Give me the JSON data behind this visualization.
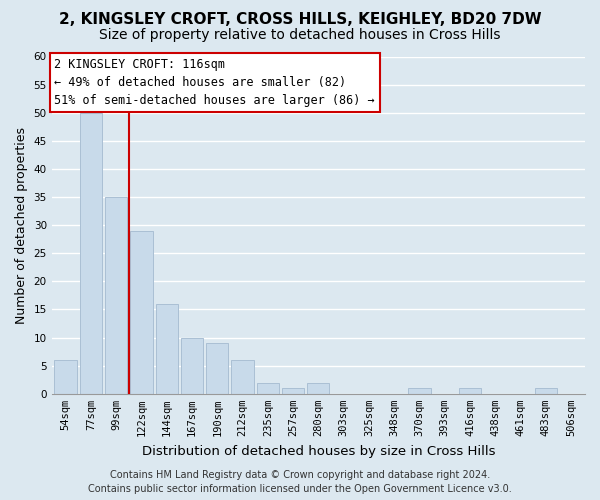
{
  "title": "2, KINGSLEY CROFT, CROSS HILLS, KEIGHLEY, BD20 7DW",
  "subtitle": "Size of property relative to detached houses in Cross Hills",
  "xlabel": "Distribution of detached houses by size in Cross Hills",
  "ylabel": "Number of detached properties",
  "bar_labels": [
    "54sqm",
    "77sqm",
    "99sqm",
    "122sqm",
    "144sqm",
    "167sqm",
    "190sqm",
    "212sqm",
    "235sqm",
    "257sqm",
    "280sqm",
    "303sqm",
    "325sqm",
    "348sqm",
    "370sqm",
    "393sqm",
    "416sqm",
    "438sqm",
    "461sqm",
    "483sqm",
    "506sqm"
  ],
  "bar_values": [
    6,
    50,
    35,
    29,
    16,
    10,
    9,
    6,
    2,
    1,
    2,
    0,
    0,
    0,
    1,
    0,
    1,
    0,
    0,
    1,
    0
  ],
  "bar_color": "#c8daea",
  "bar_edge_color": "#aabfd4",
  "vline_x": 2.5,
  "vline_color": "#cc0000",
  "ylim": [
    0,
    60
  ],
  "yticks": [
    0,
    5,
    10,
    15,
    20,
    25,
    30,
    35,
    40,
    45,
    50,
    55,
    60
  ],
  "annotation_title": "2 KINGSLEY CROFT: 116sqm",
  "annotation_line1": "← 49% of detached houses are smaller (82)",
  "annotation_line2": "51% of semi-detached houses are larger (86) →",
  "footer_line1": "Contains HM Land Registry data © Crown copyright and database right 2024.",
  "footer_line2": "Contains public sector information licensed under the Open Government Licence v3.0.",
  "title_fontsize": 11,
  "subtitle_fontsize": 10,
  "xlabel_fontsize": 9.5,
  "ylabel_fontsize": 9,
  "tick_fontsize": 7.5,
  "annotation_fontsize": 8.5,
  "footer_fontsize": 7,
  "bg_color": "#dce8f0",
  "plot_bg_color": "#dce8f0",
  "grid_color": "#ffffff",
  "grid_linewidth": 1.0
}
